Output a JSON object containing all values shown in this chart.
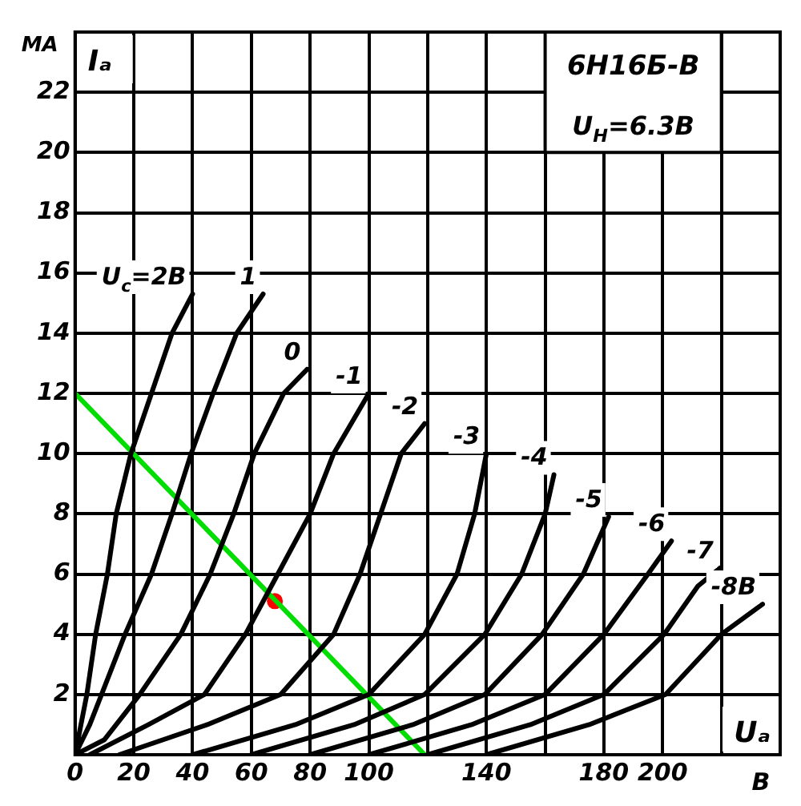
{
  "chart_data": {
    "type": "line",
    "title": "6Н16Б-В",
    "subtitle": "U$_{Н}$=6.3В",
    "xlabel": "Uₐ",
    "ylabel": "Iₐ",
    "annotations": [
      "МА",
      "В"
    ],
    "xlim": [
      0,
      240
    ],
    "ylim": [
      0,
      24
    ],
    "xticks": [
      0,
      20,
      40,
      60,
      80,
      100,
      {
        "value": 120,
        "label": null
      },
      140,
      {
        "value": 160,
        "label": null
      },
      180,
      200,
      {
        "value": 220,
        "label": null
      }
    ],
    "yticks": [
      2,
      4,
      6,
      8,
      10,
      12,
      14,
      16,
      18,
      20,
      22
    ],
    "grid": true,
    "legend": false,
    "marker": "none",
    "line_style": "solid",
    "series": [
      {
        "name": "U$_{c}$=2В",
        "color": "#000000",
        "x": [
          0,
          2,
          4,
          7,
          11,
          14,
          19,
          26,
          33,
          40
        ],
        "values": [
          0,
          1,
          2,
          4,
          6,
          8,
          10,
          12,
          14,
          15.3
        ]
      },
      {
        "name": "1",
        "color": "#000000",
        "x": [
          0,
          5,
          9,
          17,
          26,
          33,
          39.5,
          47,
          55,
          64
        ],
        "values": [
          0,
          1,
          2,
          4,
          6,
          8,
          10,
          12,
          14,
          15.3
        ]
      },
      {
        "name": "0",
        "color": "#000000",
        "x": [
          0,
          10,
          22,
          36,
          46,
          54,
          61,
          71,
          79
        ],
        "values": [
          0,
          0.5,
          2,
          4,
          6,
          8,
          10,
          12,
          12.8
        ]
      },
      {
        "name": "-1",
        "color": "#000000",
        "x": [
          5,
          25,
          44,
          58,
          69,
          80,
          88,
          100
        ],
        "values": [
          0,
          1,
          2,
          4,
          6,
          8,
          10,
          12
        ]
      },
      {
        "name": "-2",
        "color": "#000000",
        "x": [
          15,
          45,
          70,
          88,
          97,
          104,
          111,
          119
        ],
        "values": [
          0,
          1,
          2,
          4,
          6,
          8,
          10,
          11
        ]
      },
      {
        "name": "-3",
        "color": "#000000",
        "x": [
          40,
          75,
          100,
          119,
          130,
          136,
          140
        ],
        "values": [
          0,
          1,
          2,
          4,
          6,
          8,
          10
        ]
      },
      {
        "name": "-4",
        "color": "#000000",
        "x": [
          60,
          95,
          119,
          139.5,
          152,
          160,
          163
        ],
        "values": [
          0,
          1,
          2,
          4,
          6,
          8,
          9.3
        ]
      },
      {
        "name": "-5",
        "color": "#000000",
        "x": [
          80,
          115,
          139.5,
          159,
          173,
          181.6
        ],
        "values": [
          0,
          1,
          2,
          4,
          6,
          7.9
        ]
      },
      {
        "name": "-6",
        "color": "#000000",
        "x": [
          100,
          135,
          160,
          180,
          195,
          203
        ],
        "values": [
          0,
          1,
          2,
          4,
          6,
          7.1
        ]
      },
      {
        "name": "-7",
        "color": "#000000",
        "x": [
          120,
          155,
          180,
          200.5,
          212,
          219.5
        ],
        "values": [
          0,
          1,
          2,
          4,
          5.6,
          6.2
        ]
      },
      {
        "name": "-8В",
        "color": "#000000",
        "x": [
          140,
          175,
          201,
          220,
          234
        ],
        "values": [
          0,
          1,
          2,
          4,
          5
        ]
      },
      {
        "color": "#00dd00",
        "x": [
          0,
          119
        ],
        "values": [
          12,
          0
        ]
      },
      {
        "type": "scatter",
        "marker": "circle",
        "color": "#ff0000",
        "x": [
          68
        ],
        "values": [
          5.1
        ]
      }
    ]
  }
}
